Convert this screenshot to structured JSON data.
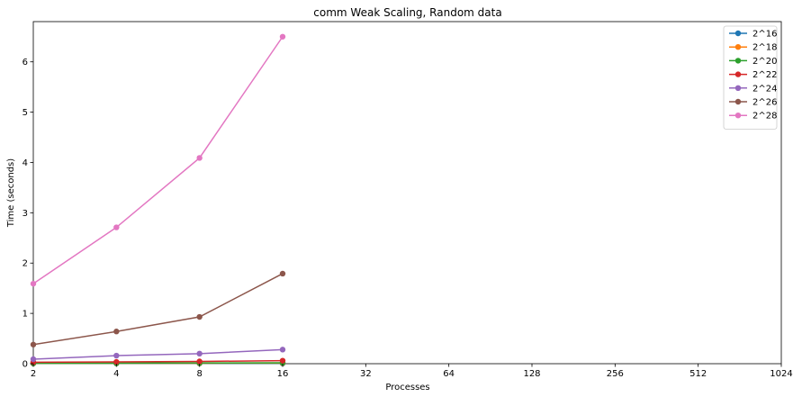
{
  "chart_data": {
    "type": "line",
    "title": "comm Weak Scaling, Random data",
    "xlabel": "Processes",
    "ylabel": "Time (seconds)",
    "x_scale": "log2",
    "x_ticks": [
      "2",
      "4",
      "8",
      "16",
      "32",
      "64",
      "128",
      "256",
      "512",
      "1024"
    ],
    "x_tick_values": [
      2,
      4,
      8,
      16,
      32,
      64,
      128,
      256,
      512,
      1024
    ],
    "xlim": [
      2,
      1024
    ],
    "ylim": [
      0,
      6.8
    ],
    "y_ticks": [
      "0",
      "1",
      "2",
      "3",
      "4",
      "5",
      "6"
    ],
    "y_tick_values": [
      0,
      1,
      2,
      3,
      4,
      5,
      6
    ],
    "grid": false,
    "legend_position": "top-right",
    "x": [
      2,
      4,
      8,
      16
    ],
    "series": [
      {
        "name": "2^16",
        "color": "#1f77b4",
        "values": [
          0.005,
          0.005,
          0.005,
          0.005
        ]
      },
      {
        "name": "2^18",
        "color": "#ff7f0e",
        "values": [
          0.008,
          0.009,
          0.01,
          0.011
        ]
      },
      {
        "name": "2^20",
        "color": "#2ca02c",
        "values": [
          0.01,
          0.012,
          0.015,
          0.018
        ]
      },
      {
        "name": "2^22",
        "color": "#d62728",
        "values": [
          0.03,
          0.035,
          0.045,
          0.06
        ]
      },
      {
        "name": "2^24",
        "color": "#9467bd",
        "values": [
          0.09,
          0.16,
          0.2,
          0.28
        ]
      },
      {
        "name": "2^26",
        "color": "#8c564b",
        "values": [
          0.38,
          0.64,
          0.93,
          1.79
        ]
      },
      {
        "name": "2^28",
        "color": "#e377c2",
        "values": [
          1.59,
          2.71,
          4.09,
          6.5
        ]
      }
    ]
  }
}
